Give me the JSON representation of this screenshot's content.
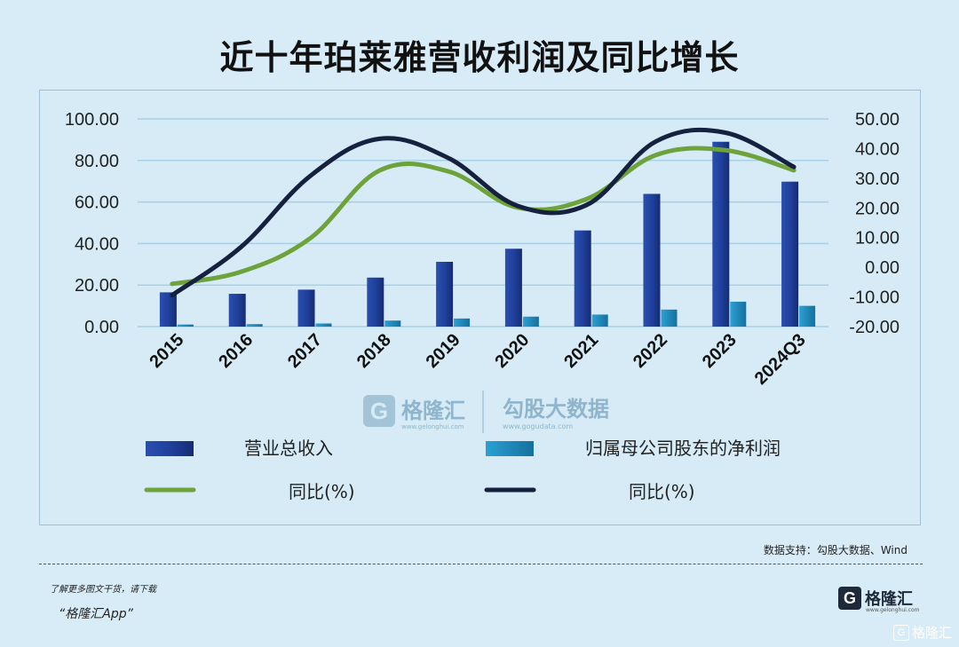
{
  "title": "近十年珀莱雅营收利润及同比增长",
  "chart_data": {
    "type": "bar",
    "categories": [
      "2015",
      "2016",
      "2017",
      "2018",
      "2019",
      "2020",
      "2021",
      "2022",
      "2023",
      "2024Q3"
    ],
    "series": [
      {
        "name": "营业总收入",
        "type": "bar",
        "axis": "left",
        "color": "#1f3f9a",
        "values": [
          16.5,
          15.8,
          17.8,
          23.6,
          31.2,
          37.5,
          46.3,
          63.9,
          89.0,
          69.8
        ]
      },
      {
        "name": "归属母公司股东的净利润",
        "type": "bar",
        "axis": "left",
        "color": "#1f8bc0",
        "values": [
          1.0,
          1.2,
          1.5,
          2.9,
          3.9,
          4.8,
          5.8,
          8.2,
          12.0,
          10.0
        ]
      },
      {
        "name": "同比(%)",
        "type": "line",
        "axis": "right",
        "color": "#6ea23a",
        "values": [
          -5.6,
          -1.5,
          9.8,
          32.6,
          32.3,
          20.1,
          23.0,
          37.8,
          39.5,
          32.7
        ]
      },
      {
        "name": "同比(%)",
        "type": "line",
        "axis": "right",
        "color": "#15213f",
        "values": [
          -9.4,
          6.9,
          30.8,
          43.3,
          36.8,
          20.7,
          21.0,
          42.4,
          45.4,
          33.8
        ]
      }
    ],
    "ylim_left": [
      0,
      100
    ],
    "yticks_left": [
      "100.00",
      "80.00",
      "60.00",
      "40.00",
      "20.00",
      "0.00"
    ],
    "ylim_right": [
      -20,
      50
    ],
    "yticks_right": [
      "50.00",
      "40.00",
      "30.00",
      "20.00",
      "10.00",
      "0.00",
      "-10.00",
      "-20.00"
    ],
    "grid": true,
    "legend_position": "bottom"
  },
  "watermark": {
    "logo_letter": "G",
    "brand": "格隆汇",
    "brand_url": "www.gelonghui.com",
    "partner": "勾股大数据",
    "partner_url": "www.gogudata.com"
  },
  "source": "数据支持：勾股大数据、Wind",
  "promo_line1": "了解更多图文干货，请下载",
  "promo_line2": "“格隆汇App”",
  "brand": {
    "logo_letter": "G",
    "name": "格隆汇",
    "url": "www.gelonghui.com"
  },
  "corner_mark": "格隆汇"
}
